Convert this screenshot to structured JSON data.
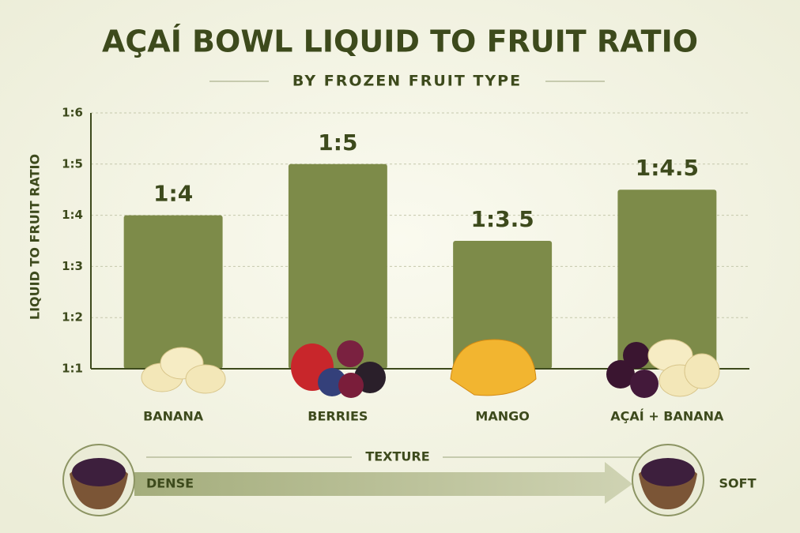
{
  "chart_data": {
    "type": "bar",
    "title": "AÇAÍ BOWL LIQUID TO FRUIT RATIO",
    "subtitle": "BY FROZEN FRUIT TYPE",
    "y_label": "LIQUID TO FRUIT RATIO",
    "categories": [
      "BANANA",
      "BERRIES",
      "MANGO",
      "AÇAÍ + BANANA"
    ],
    "values": [
      4,
      5,
      3.5,
      4.5
    ],
    "value_labels": [
      "1:4",
      "1:5",
      "1:3.5",
      "1:4.5"
    ],
    "color": "#7d8b49",
    "ylim": [
      1,
      6
    ],
    "yticks": [
      {
        "value": 1,
        "label": "1:1"
      },
      {
        "value": 2,
        "label": "1:2"
      },
      {
        "value": 3,
        "label": "1:3"
      },
      {
        "value": 4,
        "label": "1:4"
      },
      {
        "value": 5,
        "label": "1:5"
      },
      {
        "value": 6,
        "label": "1:6"
      }
    ],
    "grid": true,
    "texture_title": "TEXTURE",
    "texture_start": "DENSE",
    "texture_end": "SOFT"
  }
}
